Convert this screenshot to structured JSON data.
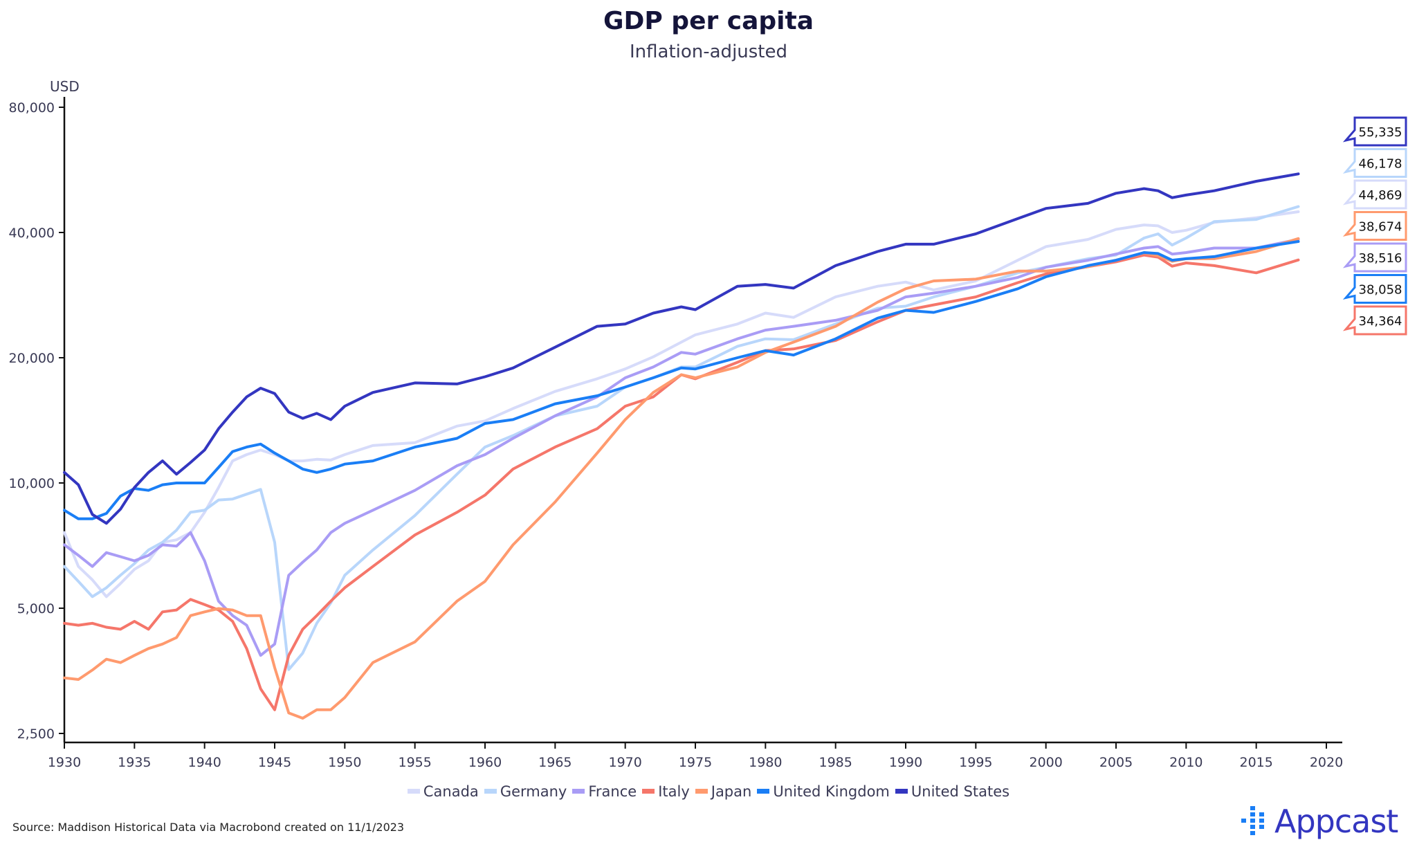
{
  "chart_data": {
    "type": "line",
    "title": "GDP per capita",
    "subtitle": "Inflation-adjusted",
    "ylabel": "USD",
    "xlabel": "",
    "yscale": "log",
    "ylim": [
      2500,
      80000
    ],
    "xlim": [
      1930,
      2020
    ],
    "yticks": [
      2500,
      5000,
      10000,
      20000,
      40000,
      80000
    ],
    "ytick_labels": [
      "2,500",
      "5,000",
      "10,000",
      "20,000",
      "40,000",
      "80,000"
    ],
    "xticks": [
      1930,
      1935,
      1940,
      1945,
      1950,
      1955,
      1960,
      1965,
      1970,
      1975,
      1980,
      1985,
      1990,
      1995,
      2000,
      2005,
      2010,
      2015,
      2020
    ],
    "grid": false,
    "legend": "bottom",
    "x": [
      1930,
      1931,
      1932,
      1933,
      1934,
      1935,
      1936,
      1937,
      1938,
      1939,
      1940,
      1941,
      1942,
      1943,
      1944,
      1945,
      1946,
      1947,
      1948,
      1949,
      1950,
      1952,
      1955,
      1958,
      1960,
      1962,
      1965,
      1968,
      1970,
      1972,
      1974,
      1975,
      1978,
      1980,
      1982,
      1985,
      1988,
      1990,
      1992,
      1995,
      1998,
      2000,
      2003,
      2005,
      2007,
      2008,
      2009,
      2010,
      2012,
      2015,
      2018
    ],
    "series": [
      {
        "name": "Canada",
        "color": "#d6dbfa",
        "end_label": "44,869",
        "values": [
          7600,
          6300,
          5850,
          5330,
          5730,
          6200,
          6500,
          7200,
          7300,
          7600,
          8500,
          9750,
          11300,
          11700,
          12000,
          11700,
          11300,
          11300,
          11400,
          11350,
          11700,
          12300,
          12500,
          13700,
          14100,
          15100,
          16600,
          17800,
          18800,
          20100,
          21800,
          22700,
          24100,
          25600,
          25000,
          28000,
          29700,
          30400,
          29100,
          30600,
          34300,
          37000,
          38500,
          40700,
          41700,
          41500,
          40000,
          40500,
          42300,
          43400,
          44869
        ]
      },
      {
        "name": "Germany",
        "color": "#b8d6fb",
        "end_label": "46,178",
        "values": [
          6300,
          5800,
          5330,
          5600,
          6000,
          6400,
          6900,
          7200,
          7700,
          8500,
          8600,
          9100,
          9150,
          9400,
          9650,
          7200,
          3560,
          3900,
          4600,
          5150,
          6000,
          6900,
          8350,
          10500,
          12200,
          13000,
          14500,
          15300,
          17000,
          17900,
          19000,
          19000,
          21300,
          22200,
          22100,
          24100,
          26300,
          26600,
          28000,
          29700,
          32000,
          33000,
          34600,
          35300,
          38800,
          39700,
          37300,
          38800,
          42500,
          43000,
          46178
        ]
      },
      {
        "name": "France",
        "color": "#a99cf5",
        "end_label": "38,516",
        "values": [
          7100,
          6700,
          6300,
          6800,
          6650,
          6500,
          6700,
          7100,
          7050,
          7600,
          6500,
          5200,
          4800,
          4550,
          3850,
          4100,
          6000,
          6450,
          6900,
          7600,
          8000,
          8600,
          9600,
          11000,
          11700,
          12800,
          14500,
          16100,
          17900,
          19000,
          20600,
          20400,
          22200,
          23300,
          23800,
          24600,
          26000,
          28000,
          28600,
          29700,
          31200,
          33000,
          34300,
          35500,
          36700,
          37000,
          35500,
          35800,
          36700,
          36700,
          38516
        ]
      },
      {
        "name": "Italy",
        "color": "#f5766a",
        "end_label": "34,364",
        "values": [
          4600,
          4550,
          4600,
          4500,
          4450,
          4650,
          4450,
          4900,
          4950,
          5250,
          5100,
          4950,
          4650,
          4000,
          3200,
          2850,
          3850,
          4450,
          4800,
          5200,
          5600,
          6300,
          7500,
          8500,
          9350,
          10800,
          12200,
          13500,
          15300,
          16100,
          18200,
          17800,
          19500,
          20800,
          21000,
          22000,
          24400,
          26000,
          26800,
          28000,
          30300,
          31800,
          33100,
          34000,
          35300,
          34900,
          33200,
          33800,
          33300,
          32000,
          34364
        ]
      },
      {
        "name": "Japan",
        "color": "#ff9a6e",
        "end_label": "38,674",
        "values": [
          3400,
          3370,
          3550,
          3770,
          3700,
          3850,
          4000,
          4100,
          4250,
          4800,
          4900,
          4990,
          4950,
          4800,
          4800,
          3600,
          2800,
          2720,
          2850,
          2850,
          3050,
          3700,
          4150,
          5200,
          5800,
          7100,
          9000,
          11800,
          14200,
          16500,
          18200,
          17900,
          19000,
          20600,
          21800,
          23800,
          27200,
          29300,
          30600,
          30900,
          32300,
          32300,
          33100,
          34300,
          35700,
          35200,
          34100,
          34600,
          34600,
          36000,
          38674
        ]
      },
      {
        "name": "United Kingdom",
        "color": "#1a7ef5",
        "end_label": "38,058",
        "values": [
          8600,
          8200,
          8200,
          8450,
          9300,
          9700,
          9600,
          9900,
          10000,
          10000,
          10000,
          10900,
          11900,
          12200,
          12400,
          11800,
          11300,
          10800,
          10600,
          10800,
          11100,
          11300,
          12200,
          12800,
          13900,
          14200,
          15500,
          16200,
          17000,
          17900,
          18900,
          18800,
          20000,
          20800,
          20300,
          22200,
          24900,
          26000,
          25700,
          27300,
          29300,
          31300,
          33300,
          34300,
          35800,
          35600,
          34300,
          34600,
          35000,
          36700,
          38058
        ]
      },
      {
        "name": "United States",
        "color": "#3336c0",
        "end_label": "55,335",
        "values": [
          10600,
          9900,
          8400,
          8000,
          8650,
          9750,
          10600,
          11300,
          10500,
          11200,
          12000,
          13500,
          14800,
          16100,
          16900,
          16400,
          14800,
          14300,
          14700,
          14200,
          15300,
          16500,
          17400,
          17300,
          18000,
          18900,
          21200,
          23800,
          24100,
          25600,
          26500,
          26100,
          29700,
          30000,
          29400,
          33300,
          36000,
          37500,
          37500,
          39700,
          43200,
          45700,
          47000,
          49700,
          51000,
          50400,
          48500,
          49200,
          50400,
          53100,
          55335
        ]
      }
    ],
    "label_order": [
      "United States",
      "Germany",
      "Canada",
      "Japan",
      "France",
      "United Kingdom",
      "Italy"
    ]
  },
  "footer": {
    "source": "Source: Maddison Historical Data via Macrobond created on 11/1/2023"
  },
  "logo": {
    "text": "Appcast",
    "color": "#3336c0",
    "dots_color": "#1a7ef5"
  }
}
